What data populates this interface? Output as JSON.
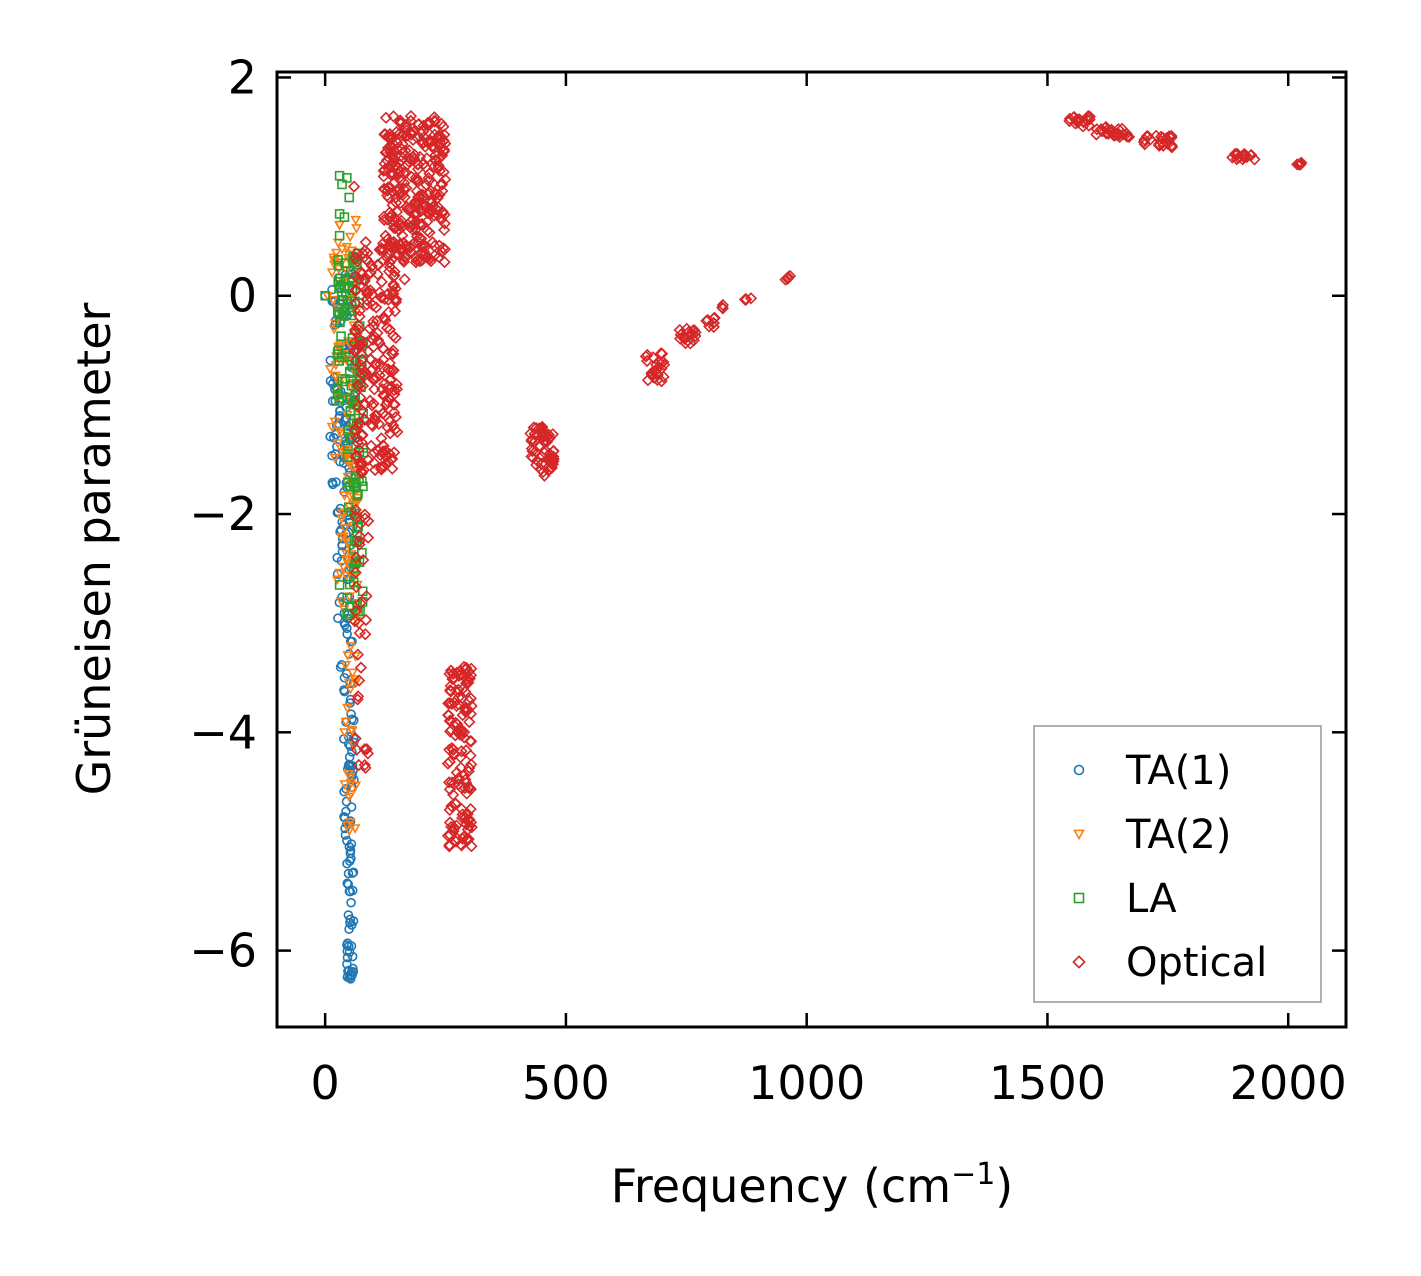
{
  "chart_data": {
    "type": "scatter",
    "xlabel": "Frequency (cm",
    "xlabel_sup": "−1",
    "xlabel_close": ")",
    "ylabel": "Grüneisen parameter",
    "xlim": [
      -100,
      2120
    ],
    "ylim": [
      -6.7,
      2.05
    ],
    "x_ticks": [
      0,
      500,
      1000,
      1500,
      2000
    ],
    "x_tick_labels": [
      "0",
      "500",
      "1000",
      "1500",
      "2000"
    ],
    "y_ticks": [
      2,
      0,
      -2,
      -4,
      -6
    ],
    "y_tick_labels": [
      "2",
      "0",
      "−2",
      "−4",
      "−6"
    ],
    "legend_position": "lower-right",
    "series": [
      {
        "name": "TA(1)",
        "marker": "circle",
        "color": "#1f77b4",
        "clusters": [
          {
            "x_range": [
              10,
              60
            ],
            "y_range": [
              -2.0,
              0.2
            ],
            "count": 90
          },
          {
            "x_range": [
              25,
              60
            ],
            "y_range": [
              -3.6,
              -2.0
            ],
            "count": 40
          },
          {
            "x_range": [
              38,
              60
            ],
            "y_range": [
              -5.0,
              -3.6
            ],
            "count": 40
          },
          {
            "x_range": [
              45,
              60
            ],
            "y_range": [
              -6.3,
              -5.0
            ],
            "count": 40
          }
        ],
        "points": [
          [
            0,
            0
          ],
          [
            30,
            -1.1
          ],
          [
            25,
            -2.4
          ],
          [
            40,
            -3.5
          ],
          [
            50,
            -6.25
          ],
          [
            55,
            0.2
          ]
        ]
      },
      {
        "name": "TA(2)",
        "marker": "triangle-down",
        "color": "#ff7f0e",
        "clusters": [
          {
            "x_range": [
              10,
              70
            ],
            "y_range": [
              -1.5,
              0.7
            ],
            "count": 80
          },
          {
            "x_range": [
              30,
              70
            ],
            "y_range": [
              -3.0,
              -1.5
            ],
            "count": 50
          },
          {
            "x_range": [
              40,
              65
            ],
            "y_range": [
              -4.9,
              -3.0
            ],
            "count": 25
          }
        ],
        "points": [
          [
            5,
            0
          ],
          [
            25,
            -2.6
          ],
          [
            30,
            0.65
          ],
          [
            50,
            -4.9
          ]
        ]
      },
      {
        "name": "LA",
        "marker": "square",
        "color": "#2ca02c",
        "clusters": [
          {
            "x_range": [
              25,
              80
            ],
            "y_range": [
              -1.0,
              0.45
            ],
            "count": 70
          },
          {
            "x_range": [
              45,
              80
            ],
            "y_range": [
              -3.0,
              -1.0
            ],
            "count": 50
          }
        ],
        "points": [
          [
            0,
            0
          ],
          [
            30,
            1.1
          ],
          [
            45,
            1.08
          ],
          [
            35,
            1.02
          ],
          [
            50,
            0.9
          ],
          [
            30,
            0.75
          ],
          [
            40,
            0.72
          ],
          [
            30,
            0.55
          ],
          [
            30,
            -2.65
          ]
        ]
      },
      {
        "name": "Optical",
        "marker": "diamond",
        "color": "#d62728",
        "clusters": [
          {
            "x_range": [
              60,
              150
            ],
            "y_range": [
              -1.6,
              0.5
            ],
            "count": 220
          },
          {
            "x_range": [
              120,
              250
            ],
            "y_range": [
              0.3,
              1.65
            ],
            "count": 300
          },
          {
            "x_range": [
              60,
              90
            ],
            "y_range": [
              -4.4,
              -1.6
            ],
            "count": 35
          },
          {
            "x_range": [
              255,
              305
            ],
            "y_range": [
              -5.05,
              -3.4
            ],
            "count": 140
          },
          {
            "x_range": [
              425,
              475
            ],
            "y_range": [
              -1.65,
              -1.2
            ],
            "count": 60
          },
          {
            "x_range": [
              665,
              705
            ],
            "y_range": [
              -0.8,
              -0.5
            ],
            "count": 25
          },
          {
            "x_range": [
              735,
              770
            ],
            "y_range": [
              -0.45,
              -0.3
            ],
            "count": 18
          },
          {
            "x_range": [
              790,
              810
            ],
            "y_range": [
              -0.3,
              -0.2
            ],
            "count": 8
          },
          {
            "x_range": [
              820,
              830
            ],
            "y_range": [
              -0.12,
              -0.08
            ],
            "count": 3
          },
          {
            "x_range": [
              870,
              885
            ],
            "y_range": [
              -0.06,
              -0.02
            ],
            "count": 4
          },
          {
            "x_range": [
              955,
              970
            ],
            "y_range": [
              0.14,
              0.2
            ],
            "count": 4
          },
          {
            "x_range": [
              1545,
              1590
            ],
            "y_range": [
              1.55,
              1.65
            ],
            "count": 20
          },
          {
            "x_range": [
              1600,
              1670
            ],
            "y_range": [
              1.45,
              1.55
            ],
            "count": 25
          },
          {
            "x_range": [
              1700,
              1760
            ],
            "y_range": [
              1.36,
              1.47
            ],
            "count": 25
          },
          {
            "x_range": [
              1880,
              1930
            ],
            "y_range": [
              1.24,
              1.3
            ],
            "count": 18
          },
          {
            "x_range": [
              2010,
              2030
            ],
            "y_range": [
              1.2,
              1.23
            ],
            "count": 5
          }
        ],
        "points": [
          [
            60,
            1.0
          ],
          [
            165,
            0.15
          ],
          [
            200,
            0.45
          ],
          [
            200,
            0.4
          ],
          [
            70,
            -3.0
          ],
          [
            70,
            -4.3
          ]
        ]
      }
    ]
  }
}
